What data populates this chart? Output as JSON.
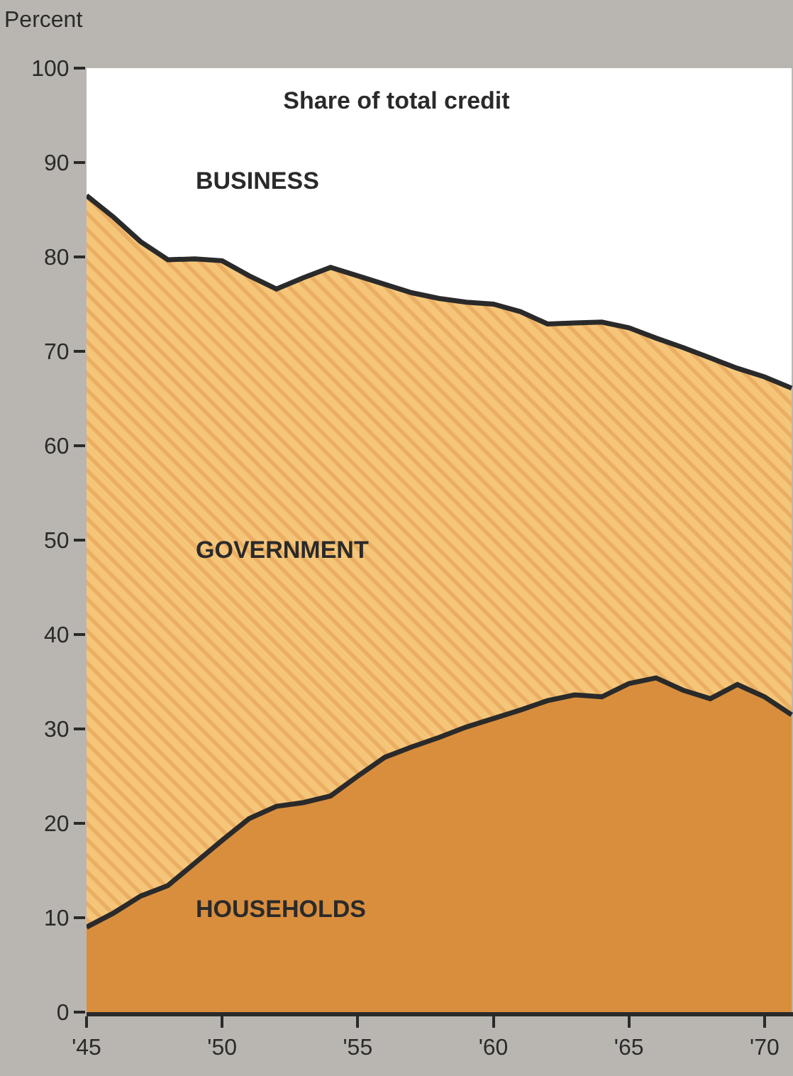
{
  "chart_data": {
    "type": "area",
    "stacked": true,
    "title": "Share of total credit",
    "ylabel": "Percent",
    "x": [
      1945,
      1946,
      1947,
      1948,
      1949,
      1950,
      1951,
      1952,
      1953,
      1954,
      1955,
      1956,
      1957,
      1958,
      1959,
      1960,
      1961,
      1962,
      1963,
      1964,
      1965,
      1966,
      1967,
      1968,
      1969,
      1970,
      1971
    ],
    "series": [
      {
        "name": "HOUSEHOLDS",
        "color": "#d98e3e",
        "values": [
          9.0,
          10.5,
          12.3,
          13.4,
          15.8,
          18.2,
          20.5,
          21.8,
          22.2,
          22.9,
          25.0,
          27.0,
          28.1,
          29.1,
          30.2,
          31.1,
          32.0,
          33.0,
          33.6,
          33.4,
          34.8,
          35.4,
          34.1,
          33.2,
          34.7,
          33.4,
          31.5
        ]
      },
      {
        "name": "GOVERNMENT",
        "color": "#f5c67a",
        "values": [
          77.5,
          73.7,
          69.3,
          66.3,
          64.0,
          61.4,
          57.5,
          54.8,
          55.6,
          56.0,
          53.0,
          50.1,
          48.1,
          46.5,
          45.0,
          43.9,
          42.2,
          39.9,
          39.4,
          39.7,
          37.7,
          36.0,
          36.3,
          36.1,
          33.5,
          33.9,
          34.6
        ]
      },
      {
        "name": "BUSINESS",
        "color": "#ffffff",
        "values": [
          13.5,
          15.8,
          18.4,
          20.3,
          20.2,
          20.4,
          22.0,
          23.4,
          22.2,
          21.1,
          22.0,
          22.9,
          23.8,
          24.4,
          24.8,
          25.0,
          25.8,
          27.1,
          27.0,
          26.9,
          27.5,
          28.6,
          29.6,
          30.7,
          31.8,
          32.7,
          33.9
        ]
      }
    ],
    "xlim": [
      1945,
      1971.05
    ],
    "xticks": [
      {
        "value": 1945,
        "label": "'45"
      },
      {
        "value": 1950,
        "label": "'50"
      },
      {
        "value": 1955,
        "label": "'55"
      },
      {
        "value": 1960,
        "label": "'60"
      },
      {
        "value": 1965,
        "label": "'65"
      },
      {
        "value": 1970,
        "label": "'70"
      }
    ],
    "ylim": [
      0,
      100
    ],
    "yticks": [
      0,
      10,
      20,
      30,
      40,
      50,
      60,
      70,
      80,
      90,
      100
    ],
    "grid": false,
    "legend": false
  }
}
